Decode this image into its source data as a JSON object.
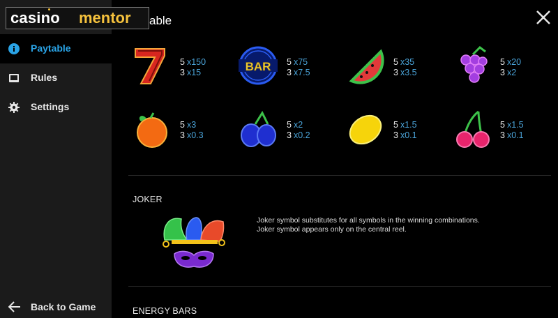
{
  "brand": {
    "part1": "casino",
    "part2": "mentor",
    "accent": "#f6c23d"
  },
  "page_title": "able",
  "sidebar": {
    "items": [
      {
        "label": "Paytable",
        "icon": "info-icon",
        "active": true
      },
      {
        "label": "Rules",
        "icon": "book-icon",
        "active": false
      },
      {
        "label": "Settings",
        "icon": "gear-icon",
        "active": false
      }
    ],
    "back_label": "Back to Game",
    "active_color": "#2aa3e6"
  },
  "paytable": [
    {
      "symbol": "seven-icon",
      "rows": [
        {
          "count": "5",
          "mult": "x150"
        },
        {
          "count": "3",
          "mult": "x15"
        }
      ]
    },
    {
      "symbol": "bar-icon",
      "bar_text": "BAR",
      "rows": [
        {
          "count": "5",
          "mult": "x75"
        },
        {
          "count": "3",
          "mult": "x7.5"
        }
      ]
    },
    {
      "symbol": "watermelon-icon",
      "rows": [
        {
          "count": "5",
          "mult": "x35"
        },
        {
          "count": "3",
          "mult": "x3.5"
        }
      ]
    },
    {
      "symbol": "grapes-icon",
      "rows": [
        {
          "count": "5",
          "mult": "x20"
        },
        {
          "count": "3",
          "mult": "x2"
        }
      ]
    },
    {
      "symbol": "orange-icon",
      "rows": [
        {
          "count": "5",
          "mult": "x3"
        },
        {
          "count": "3",
          "mult": "x0.3"
        }
      ]
    },
    {
      "symbol": "plum-icon",
      "rows": [
        {
          "count": "5",
          "mult": "x2"
        },
        {
          "count": "3",
          "mult": "x0.2"
        }
      ]
    },
    {
      "symbol": "lemon-icon",
      "rows": [
        {
          "count": "5",
          "mult": "x1.5"
        },
        {
          "count": "3",
          "mult": "x0.1"
        }
      ]
    },
    {
      "symbol": "cherry-icon",
      "rows": [
        {
          "count": "5",
          "mult": "x1.5"
        },
        {
          "count": "3",
          "mult": "x0.1"
        }
      ]
    }
  ],
  "joker": {
    "title": "JOKER",
    "line1": "Joker symbol substitutes for all symbols in the winning combinations.",
    "line2": "Joker symbol appears only on the central reel."
  },
  "energy_bars": {
    "title": "ENERGY BARS"
  }
}
